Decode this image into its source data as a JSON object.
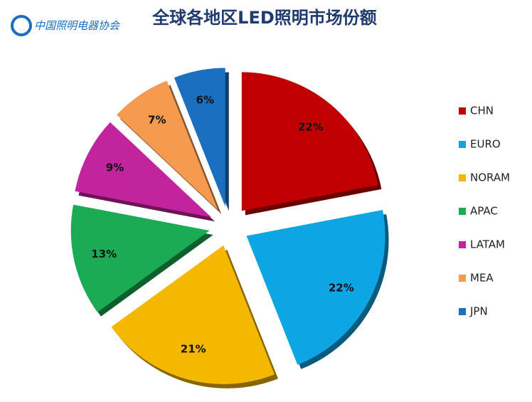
{
  "logo_text": "中国照明电器协会",
  "chart_data": {
    "type": "pie",
    "title": "全球各地区LED照明市场份额",
    "categories": [
      "CHN",
      "EURO",
      "NORAM",
      "APAC",
      "LATAM",
      "MEA",
      "JPN"
    ],
    "values": [
      22,
      22,
      21,
      13,
      9,
      7,
      6
    ],
    "value_labels": [
      "22%",
      "22%",
      "21%",
      "13%",
      "9%",
      "7%",
      "6%"
    ],
    "colors": [
      "#c00000",
      "#0ea5e4",
      "#f5b800",
      "#1aab54",
      "#c2249e",
      "#f59a4f",
      "#1a6fc0"
    ],
    "legend": "right"
  }
}
